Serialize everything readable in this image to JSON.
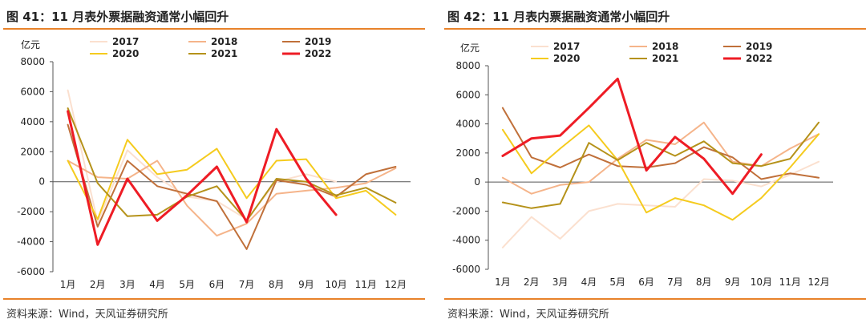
{
  "figures": [
    {
      "title": "图 41：11 月表外票据融资通常小幅回升",
      "source": "资料来源：Wind，天风证券研究所",
      "chart_data": {
        "type": "line",
        "ylabel": "亿元",
        "ylim": [
          -6000,
          8000
        ],
        "yticks": [
          -6000,
          -4000,
          -2000,
          0,
          2000,
          4000,
          6000,
          8000
        ],
        "categories": [
          "1月",
          "2月",
          "3月",
          "4月",
          "5月",
          "6月",
          "7月",
          "8月",
          "9月",
          "10月",
          "11月",
          "12月"
        ],
        "legend_position": "top",
        "series": [
          {
            "name": "2017",
            "color": "#fbe0cf",
            "width": 2,
            "values": [
              6100,
              -2700,
              2100,
              300,
              -1000,
              -1300,
              -2500,
              0,
              500,
              0,
              null,
              null
            ]
          },
          {
            "name": "2018",
            "color": "#f5b48a",
            "width": 2,
            "values": [
              1400,
              300,
              200,
              1400,
              -1600,
              -3600,
              -2800,
              -800,
              -600,
              -400,
              -100,
              900
            ]
          },
          {
            "name": "2019",
            "color": "#c0703a",
            "width": 2,
            "values": [
              3800,
              -3000,
              1400,
              -300,
              -800,
              -1300,
              -4500,
              100,
              -200,
              -1000,
              500,
              1000
            ]
          },
          {
            "name": "2020",
            "color": "#f5cb1e",
            "width": 2,
            "values": [
              1400,
              -2500,
              2800,
              500,
              800,
              2200,
              -1100,
              1400,
              1500,
              -1100,
              -600,
              -2200
            ]
          },
          {
            "name": "2021",
            "color": "#b5921a",
            "width": 2,
            "values": [
              4900,
              -100,
              -2300,
              -2200,
              -1000,
              -300,
              -2600,
              200,
              0,
              -900,
              -400,
              -1400
            ]
          },
          {
            "name": "2022",
            "color": "#ee1c25",
            "width": 3,
            "values": [
              4700,
              -4200,
              200,
              -2600,
              -900,
              1000,
              -2700,
              3500,
              200,
              -2200,
              null,
              null
            ]
          }
        ]
      }
    },
    {
      "title": "图 42：11 月表内票据融资通常小幅回升",
      "source": "资料来源：Wind，天风证券研究所",
      "chart_data": {
        "type": "line",
        "ylabel": "亿元",
        "ylim": [
          -6000,
          8000
        ],
        "yticks": [
          -6000,
          -4000,
          -2000,
          0,
          2000,
          4000,
          6000,
          8000
        ],
        "categories": [
          "1月",
          "2月",
          "3月",
          "4月",
          "5月",
          "6月",
          "7月",
          "8月",
          "9月",
          "10月",
          "11月",
          "12月"
        ],
        "legend_position": "top",
        "series": [
          {
            "name": "2017",
            "color": "#fbe0cf",
            "width": 2,
            "values": [
              -4500,
              -2400,
              -3900,
              -2000,
              -1500,
              -1600,
              -1700,
              200,
              100,
              -300,
              500,
              1400
            ]
          },
          {
            "name": "2018",
            "color": "#f5b48a",
            "width": 2,
            "values": [
              300,
              -800,
              -200,
              0,
              1600,
              2900,
              2600,
              4100,
              1400,
              1100,
              2300,
              3300
            ]
          },
          {
            "name": "2019",
            "color": "#c0703a",
            "width": 2,
            "values": [
              5100,
              1700,
              1000,
              1900,
              1100,
              1000,
              1300,
              2400,
              1700,
              200,
              600,
              300
            ]
          },
          {
            "name": "2020",
            "color": "#f5cb1e",
            "width": 2,
            "values": [
              3600,
              600,
              2300,
              3900,
              1500,
              -2100,
              -1100,
              -1600,
              -2600,
              -1100,
              1000,
              3300
            ]
          },
          {
            "name": "2021",
            "color": "#b5921a",
            "width": 2,
            "values": [
              -1400,
              -1800,
              -1500,
              2700,
              1500,
              2700,
              1800,
              2800,
              1300,
              1100,
              1600,
              4100
            ]
          },
          {
            "name": "2022",
            "color": "#ee1c25",
            "width": 3,
            "values": [
              1800,
              3000,
              3200,
              5100,
              7100,
              800,
              3100,
              1600,
              -800,
              1900,
              null,
              null
            ]
          }
        ]
      }
    }
  ]
}
